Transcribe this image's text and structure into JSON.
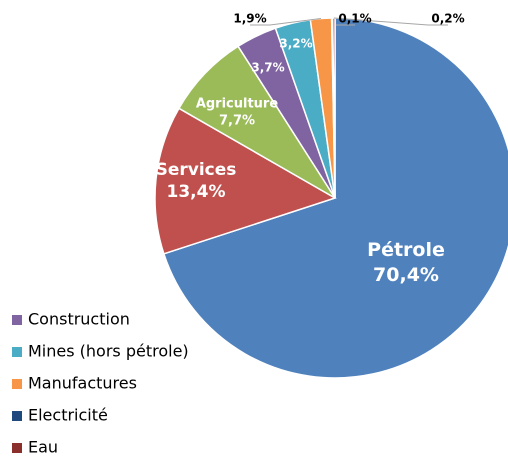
{
  "chart_data": {
    "type": "pie",
    "categories": [
      "Pétrole",
      "Services",
      "Agriculture",
      "Construction",
      "Mines (hors pétrole)",
      "Manufactures",
      "Electricité",
      "Eau"
    ],
    "values": [
      70.4,
      13.4,
      7.7,
      3.7,
      3.2,
      1.9,
      0.1,
      0.2
    ],
    "value_labels": [
      "70,4%",
      "13,4%",
      "7,7%",
      "3,7%",
      "3,2%",
      "1,9%",
      "0,1%",
      "0,2%"
    ],
    "colors": [
      "#4f81bd",
      "#c0504d",
      "#9bbb59",
      "#8064a2",
      "#4bacc6",
      "#f79646",
      "#1f497d",
      "#8b2f2d"
    ],
    "legend": [
      "Construction",
      "Mines (hors pétrole)",
      "Manufactures",
      "Electricité",
      "Eau"
    ],
    "legend_position": "bottom-left"
  }
}
